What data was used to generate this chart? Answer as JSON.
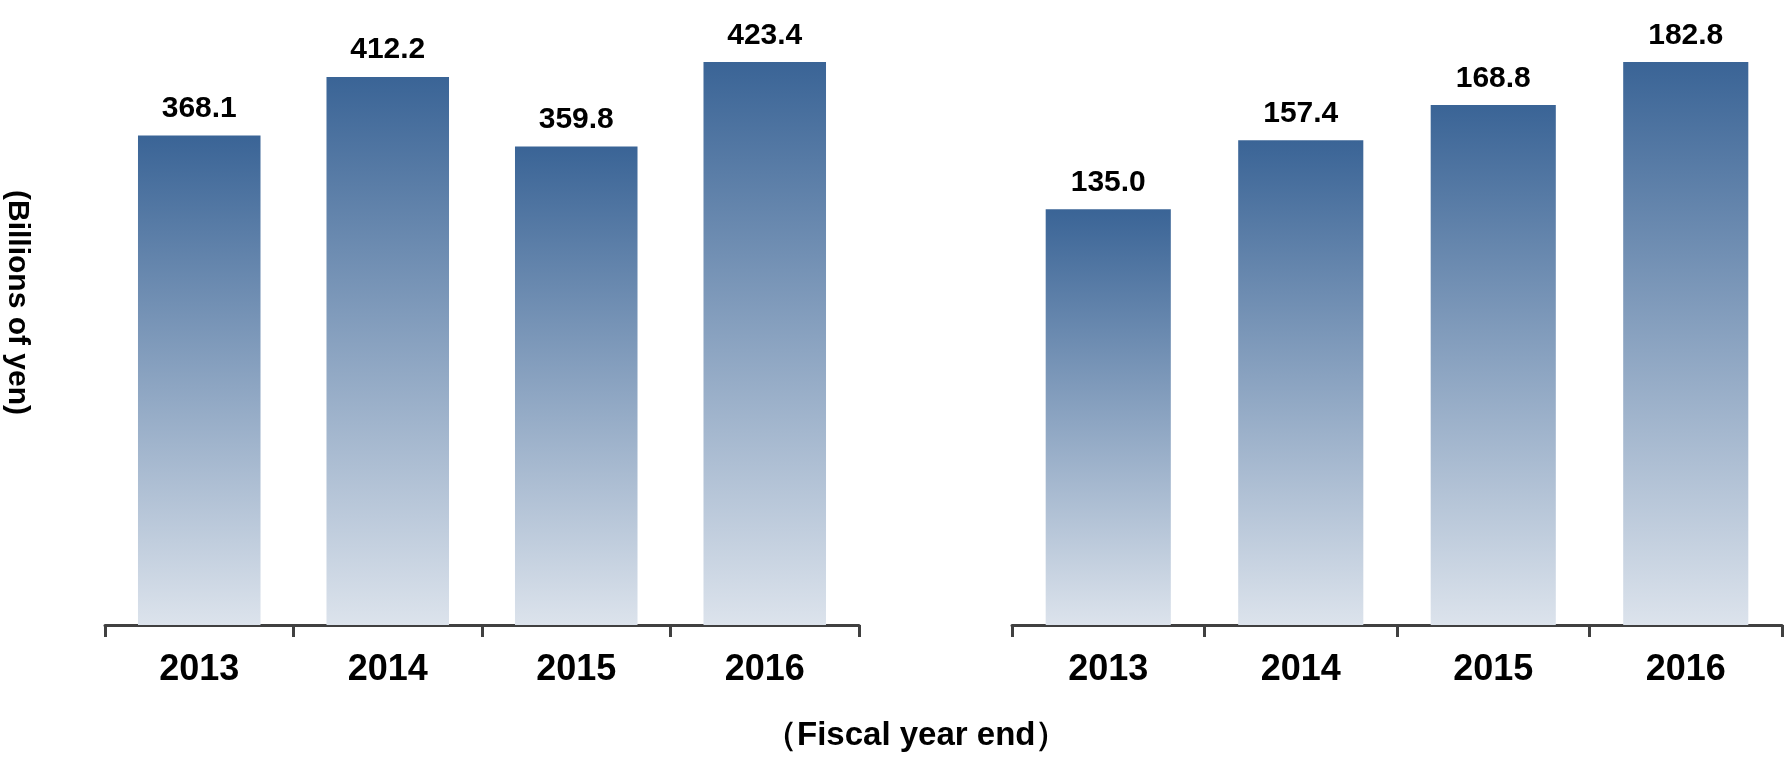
{
  "chart_data": [
    {
      "type": "bar",
      "ylabel": "(Billions of yen)",
      "xlabel": "（Fiscal year end）",
      "categories": [
        "2013",
        "2014",
        "2015",
        "2016"
      ],
      "values": [
        368.1,
        412.2,
        359.8,
        423.4
      ],
      "value_labels": [
        "368.1",
        "412.2",
        "359.8",
        "423.4"
      ],
      "color": "#3a6496"
    },
    {
      "type": "bar",
      "categories": [
        "2013",
        "2014",
        "2015",
        "2016"
      ],
      "values": [
        135.0,
        157.4,
        168.8,
        182.8
      ],
      "value_labels": [
        "135.0",
        "157.4",
        "168.8",
        "182.8"
      ],
      "color": "#3a6496"
    }
  ]
}
